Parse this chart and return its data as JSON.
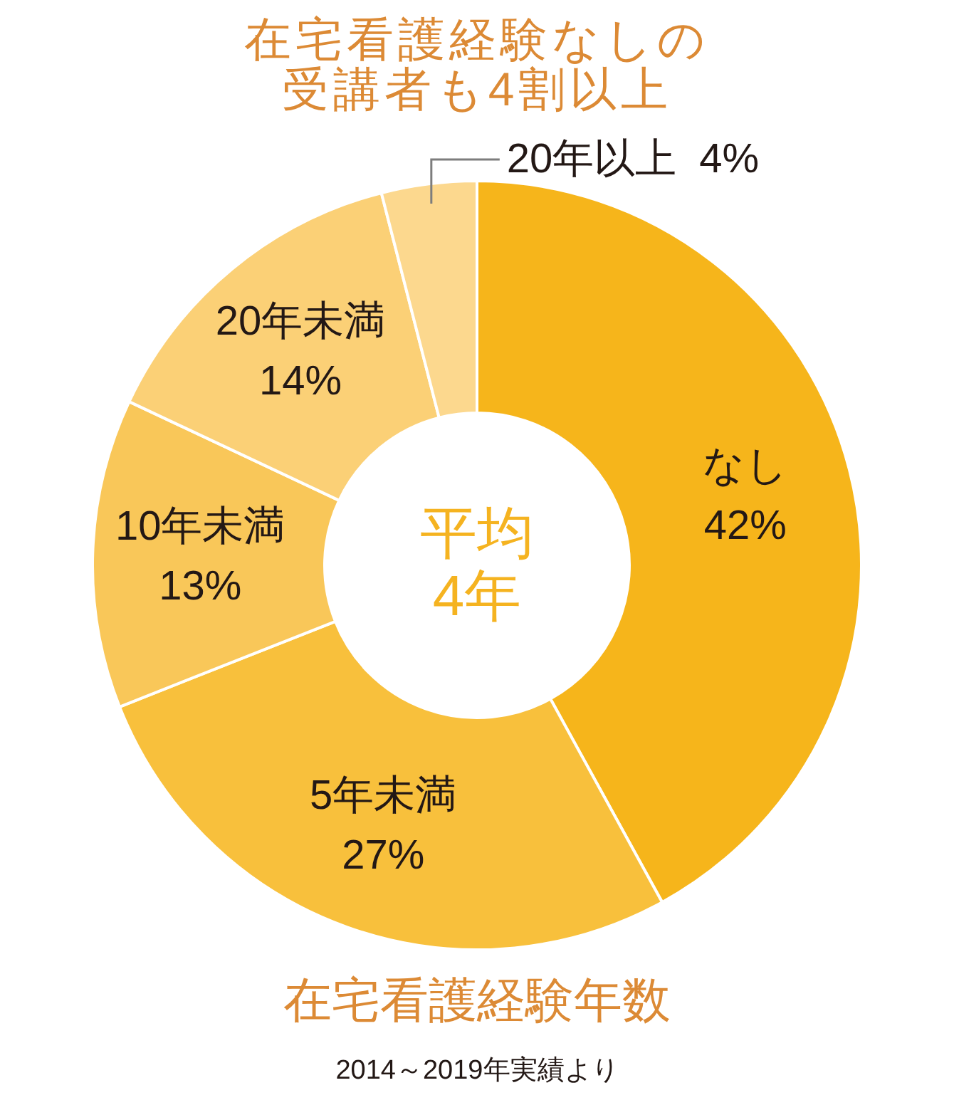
{
  "chart_data": {
    "type": "donut",
    "title": "在宅看護経験なしの受講者も4割以上",
    "subtitle": "在宅看護経験年数",
    "categories": [
      "なし",
      "5年未満",
      "10年未満",
      "20年未満",
      "20年以上"
    ],
    "values": [
      42,
      27,
      13,
      14,
      4
    ],
    "value_labels": [
      "42%",
      "27%",
      "13%",
      "14%",
      "4%"
    ],
    "colors": [
      "#f6b51b",
      "#f8c03c",
      "#f9c759",
      "#fbd076",
      "#fcd88e"
    ],
    "annotations": [
      "平均4年",
      "2014～2019年実績より"
    ]
  }
}
